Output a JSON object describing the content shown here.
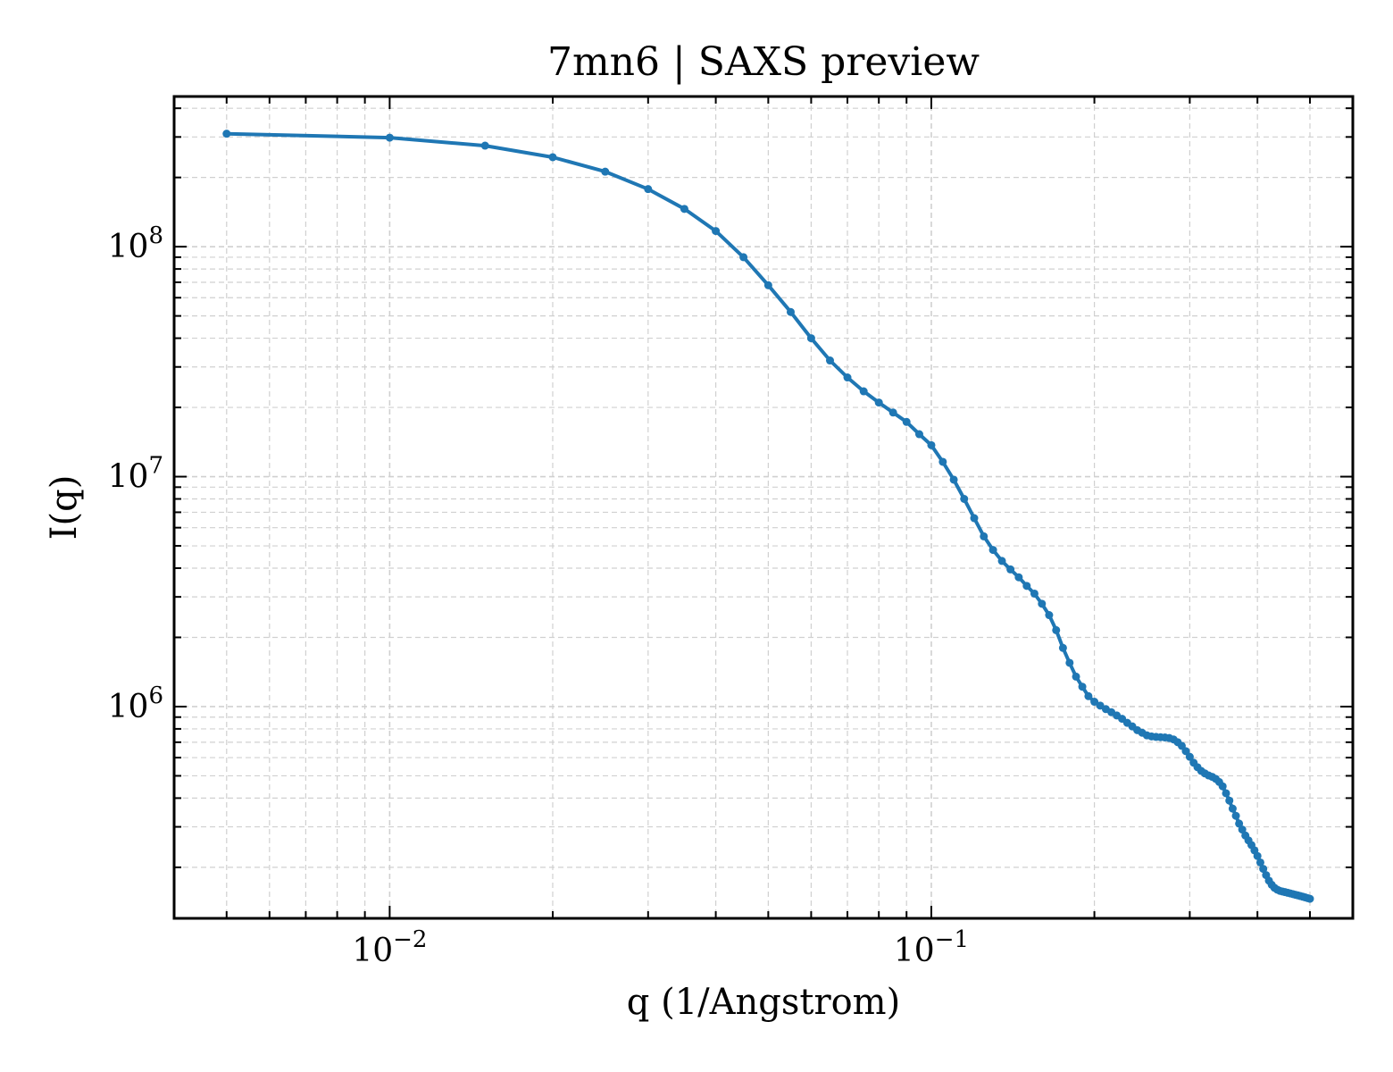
{
  "chart_data": {
    "type": "line",
    "title": "7mn6 | SAXS preview",
    "xlabel": "q (1/Angstrom)",
    "ylabel": "I(q)",
    "xscale": "log",
    "yscale": "log",
    "xlim": [
      0.004,
      0.6
    ],
    "ylim": [
      120000,
      450000000
    ],
    "grid": true,
    "x_ticks": [
      {
        "value": 0.01,
        "base": "10",
        "exp": "−2"
      },
      {
        "value": 0.1,
        "base": "10",
        "exp": "−1"
      }
    ],
    "y_ticks": [
      {
        "value": 1000000,
        "base": "10",
        "exp": "6"
      },
      {
        "value": 10000000,
        "base": "10",
        "exp": "7"
      },
      {
        "value": 100000000,
        "base": "10",
        "exp": "8"
      }
    ],
    "series": [
      {
        "color": "#1f77b4",
        "x": [
          0.005,
          0.01,
          0.015,
          0.02,
          0.025,
          0.03,
          0.035,
          0.04,
          0.045,
          0.05,
          0.055,
          0.06,
          0.065,
          0.07,
          0.075,
          0.08,
          0.085,
          0.09,
          0.095,
          0.1,
          0.105,
          0.11,
          0.115,
          0.12,
          0.125,
          0.13,
          0.135,
          0.14,
          0.145,
          0.15,
          0.155,
          0.16,
          0.165,
          0.17,
          0.175,
          0.18,
          0.185,
          0.19,
          0.195,
          0.2,
          0.205,
          0.21,
          0.215,
          0.22,
          0.225,
          0.23,
          0.235,
          0.24,
          0.245,
          0.25,
          0.255,
          0.26,
          0.265,
          0.27,
          0.275,
          0.28,
          0.285,
          0.29,
          0.295,
          0.3,
          0.305,
          0.31,
          0.315,
          0.32,
          0.325,
          0.33,
          0.335,
          0.34,
          0.345,
          0.35,
          0.355,
          0.36,
          0.365,
          0.37,
          0.375,
          0.38,
          0.385,
          0.39,
          0.395,
          0.4,
          0.405,
          0.41,
          0.415,
          0.42,
          0.425,
          0.43,
          0.435,
          0.44,
          0.445,
          0.45,
          0.455,
          0.46,
          0.465,
          0.47,
          0.475,
          0.48,
          0.485,
          0.49,
          0.495,
          0.5
        ],
        "y": [
          310000000,
          298000000,
          275000000,
          245000000,
          212000000,
          178000000,
          146000000,
          117000000,
          90000000,
          68000000,
          52000000,
          40000000,
          32000000,
          27000000,
          23500000,
          21000000,
          19000000,
          17300000,
          15300000,
          13700000,
          11600000,
          9700000,
          8000000,
          6600000,
          5500000,
          4800000,
          4300000,
          3950000,
          3650000,
          3350000,
          3100000,
          2800000,
          2500000,
          2150000,
          1800000,
          1550000,
          1350000,
          1220000,
          1110000,
          1050000,
          1010000,
          975000,
          945000,
          915000,
          885000,
          850000,
          820000,
          790000,
          770000,
          750000,
          742000,
          738000,
          736000,
          734000,
          730000,
          720000,
          700000,
          675000,
          640000,
          605000,
          570000,
          545000,
          525000,
          512000,
          502000,
          495000,
          485000,
          470000,
          450000,
          420000,
          390000,
          360000,
          335000,
          310000,
          292000,
          275000,
          262000,
          250000,
          237000,
          224000,
          210000,
          197000,
          185000,
          175000,
          168000,
          163000,
          160000,
          158000,
          157000,
          156000,
          155000,
          154000,
          153000,
          152000,
          151000,
          150000,
          149000,
          148000,
          147000,
          146000
        ]
      }
    ]
  }
}
